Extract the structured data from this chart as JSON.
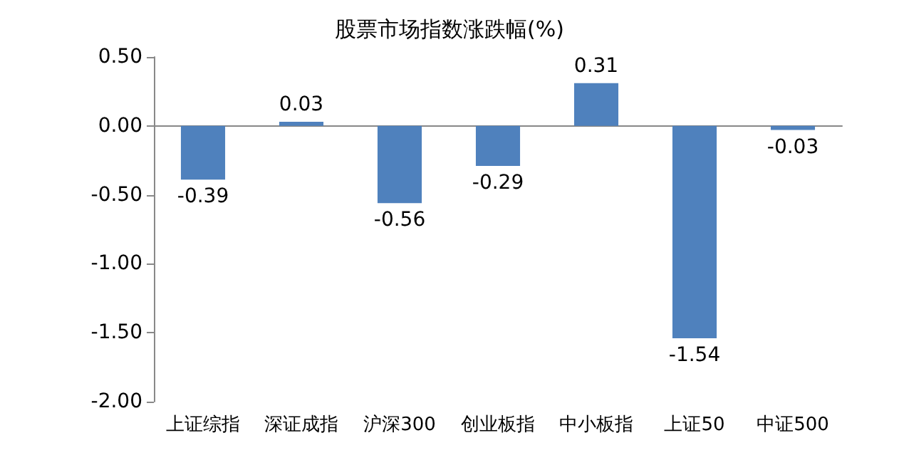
{
  "chart_data": {
    "type": "bar",
    "title": "股票市场指数涨跌幅(%)",
    "categories": [
      "上证综指",
      "深证成指",
      "沪深300",
      "创业板指",
      "中小板指",
      "上证50",
      "中证500"
    ],
    "values": [
      -0.39,
      0.03,
      -0.56,
      -0.29,
      0.31,
      -1.54,
      -0.03
    ],
    "color": "#4f81bd",
    "ylim": [
      -2,
      0.5
    ],
    "yticks": [
      {
        "value": -2,
        "label": "-2.00"
      },
      {
        "value": -1.5,
        "label": "-1.50"
      },
      {
        "value": -1,
        "label": "-1.00"
      },
      {
        "value": -0.5,
        "label": "-0.50"
      },
      {
        "value": 0,
        "label": "0.00"
      },
      {
        "value": 0.5,
        "label": "0.50"
      }
    ],
    "data_labels": true
  }
}
